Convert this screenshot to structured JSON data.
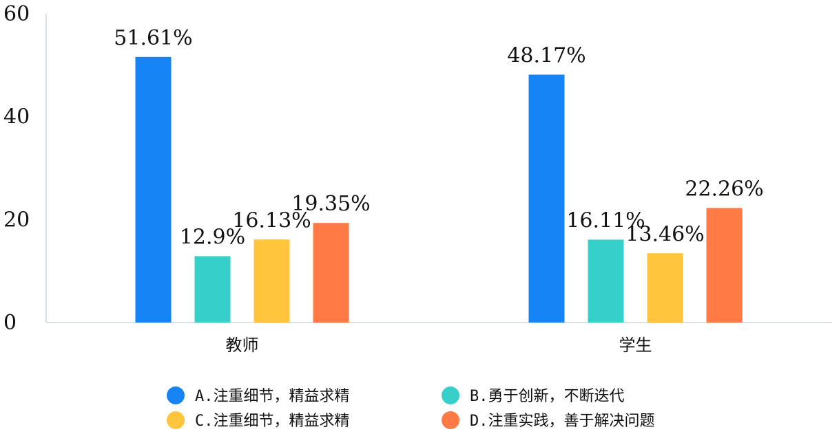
{
  "chart_data": {
    "type": "bar",
    "categories": [
      "教师",
      "学生"
    ],
    "series": [
      {
        "name": "A.注重细节，精益求精",
        "values": [
          51.61,
          48.17
        ],
        "labels": [
          "51.61%",
          "48.17%"
        ],
        "color": "#1684F4"
      },
      {
        "name": "B.勇于创新，不断迭代",
        "values": [
          12.9,
          16.11
        ],
        "labels": [
          "12.9%",
          "16.11%"
        ],
        "color": "#36CFC9"
      },
      {
        "name": "C.注重细节，精益求精",
        "values": [
          16.13,
          13.46
        ],
        "labels": [
          "16.13%",
          "13.46%"
        ],
        "color": "#FFC53D"
      },
      {
        "name": "D.注重实践，善于解决问题",
        "values": [
          19.35,
          22.26
        ],
        "labels": [
          "19.35%",
          "22.26%"
        ],
        "color": "#FF7A45"
      }
    ],
    "y_ticks": [
      0,
      20,
      40,
      60
    ],
    "ylim": [
      0,
      60
    ],
    "grid": false,
    "legend_position": "bottom"
  }
}
